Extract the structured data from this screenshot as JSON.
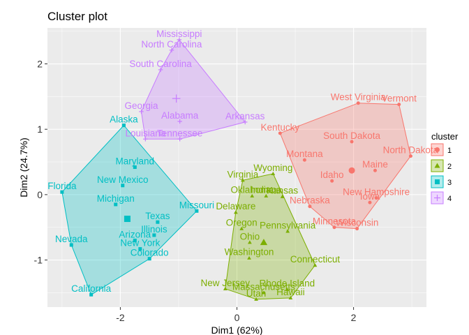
{
  "chart_data": {
    "type": "scatter",
    "title": "Cluster plot",
    "xlabel": "Dim1 (62%)",
    "ylabel": "Dim2 (24.7%)",
    "xlim": [
      -3.25,
      3.25
    ],
    "ylim": [
      -1.72,
      2.55
    ],
    "xticks": [
      -2,
      0,
      2
    ],
    "yticks": [
      -1,
      0,
      1,
      2
    ],
    "xtick_labels": [
      "-2",
      "0",
      "2"
    ],
    "ytick_labels": [
      "-1",
      "0",
      "1",
      "2"
    ],
    "grid": true,
    "legend_title": "cluster",
    "legend_position": "right",
    "clusters": [
      {
        "name": "1",
        "color": "#F8766D",
        "shape": "circle",
        "centroid": [
          1.97,
          0.37
        ],
        "points": [
          {
            "label": "West Virginia",
            "x": 2.08,
            "y": 1.4
          },
          {
            "label": "Vermont",
            "x": 2.78,
            "y": 1.38
          },
          {
            "label": "Kentucky",
            "x": 0.74,
            "y": 0.94
          },
          {
            "label": "South Dakota",
            "x": 1.97,
            "y": 0.81
          },
          {
            "label": "North Dakota",
            "x": 2.98,
            "y": 0.59
          },
          {
            "label": "Montana",
            "x": 1.16,
            "y": 0.53
          },
          {
            "label": "Maine",
            "x": 2.37,
            "y": 0.37
          },
          {
            "label": "Idaho",
            "x": 1.63,
            "y": 0.21
          },
          {
            "label": "New Hampshire",
            "x": 2.39,
            "y": -0.05
          },
          {
            "label": "Iowa",
            "x": 2.28,
            "y": -0.12
          },
          {
            "label": "Nebraska",
            "x": 1.25,
            "y": -0.18
          },
          {
            "label": "Wisconsin",
            "x": 2.06,
            "y": -0.52
          },
          {
            "label": "Minnesota",
            "x": 1.67,
            "y": -0.5
          }
        ]
      },
      {
        "name": "2",
        "color": "#7CAE00",
        "shape": "triangle",
        "centroid": [
          0.46,
          -0.73
        ],
        "points": [
          {
            "label": "Virginia",
            "x": 0.1,
            "y": 0.22
          },
          {
            "label": "Wyoming",
            "x": 0.62,
            "y": 0.32
          },
          {
            "label": "Indiana",
            "x": 0.5,
            "y": -0.02
          },
          {
            "label": "Kansas",
            "x": 0.78,
            "y": -0.03
          },
          {
            "label": "Oklahoma",
            "x": 0.26,
            "y": -0.02
          },
          {
            "label": "Delaware",
            "x": -0.02,
            "y": -0.27
          },
          {
            "label": "Oregon",
            "x": 0.08,
            "y": -0.52
          },
          {
            "label": "Pennsylvania",
            "x": 0.87,
            "y": -0.56
          },
          {
            "label": "Ohio",
            "x": 0.22,
            "y": -0.73
          },
          {
            "label": "Washington",
            "x": 0.21,
            "y": -0.97
          },
          {
            "label": "Connecticut",
            "x": 1.34,
            "y": -1.08
          },
          {
            "label": "New Jersey",
            "x": -0.2,
            "y": -1.44
          },
          {
            "label": "Massachusetts",
            "x": 0.46,
            "y": -1.5
          },
          {
            "label": "Rhode Island",
            "x": 0.86,
            "y": -1.45
          },
          {
            "label": "Hawaii",
            "x": 0.92,
            "y": -1.58
          },
          {
            "label": "Utah",
            "x": 0.33,
            "y": -1.6
          }
        ]
      },
      {
        "name": "3",
        "color": "#00BFC4",
        "shape": "square",
        "centroid": [
          -1.88,
          -0.37
        ],
        "points": [
          {
            "label": "Alaska",
            "x": -1.94,
            "y": 1.06
          },
          {
            "label": "Maryland",
            "x": -1.75,
            "y": 0.42
          },
          {
            "label": "New Mexico",
            "x": -1.96,
            "y": 0.14
          },
          {
            "label": "Florida",
            "x": -3.0,
            "y": 0.04
          },
          {
            "label": "Michigan",
            "x": -2.08,
            "y": -0.15
          },
          {
            "label": "Missouri",
            "x": -0.69,
            "y": -0.25
          },
          {
            "label": "Texas",
            "x": -1.36,
            "y": -0.42
          },
          {
            "label": "Illinois",
            "x": -1.42,
            "y": -0.62
          },
          {
            "label": "Arizona",
            "x": -1.75,
            "y": -0.7
          },
          {
            "label": "New York",
            "x": -1.66,
            "y": -0.83
          },
          {
            "label": "Colorado",
            "x": -1.5,
            "y": -0.98
          },
          {
            "label": "Nevada",
            "x": -2.84,
            "y": -0.77
          },
          {
            "label": "California",
            "x": -2.5,
            "y": -1.53
          }
        ]
      },
      {
        "name": "4",
        "color": "#C77CFF",
        "shape": "cross",
        "centroid": [
          -1.04,
          1.47
        ],
        "points": [
          {
            "label": "Mississippi",
            "x": -0.99,
            "y": 2.37
          },
          {
            "label": "North Carolina",
            "x": -1.12,
            "y": 2.21
          },
          {
            "label": "South Carolina",
            "x": -1.31,
            "y": 1.91
          },
          {
            "label": "Georgia",
            "x": -1.64,
            "y": 1.27
          },
          {
            "label": "Alabama",
            "x": -0.98,
            "y": 1.12
          },
          {
            "label": "Arkansas",
            "x": 0.14,
            "y": 1.11
          },
          {
            "label": "Louisiana",
            "x": -1.57,
            "y": 0.85
          },
          {
            "label": "Tennessee",
            "x": -0.98,
            "y": 0.85
          }
        ]
      }
    ]
  }
}
